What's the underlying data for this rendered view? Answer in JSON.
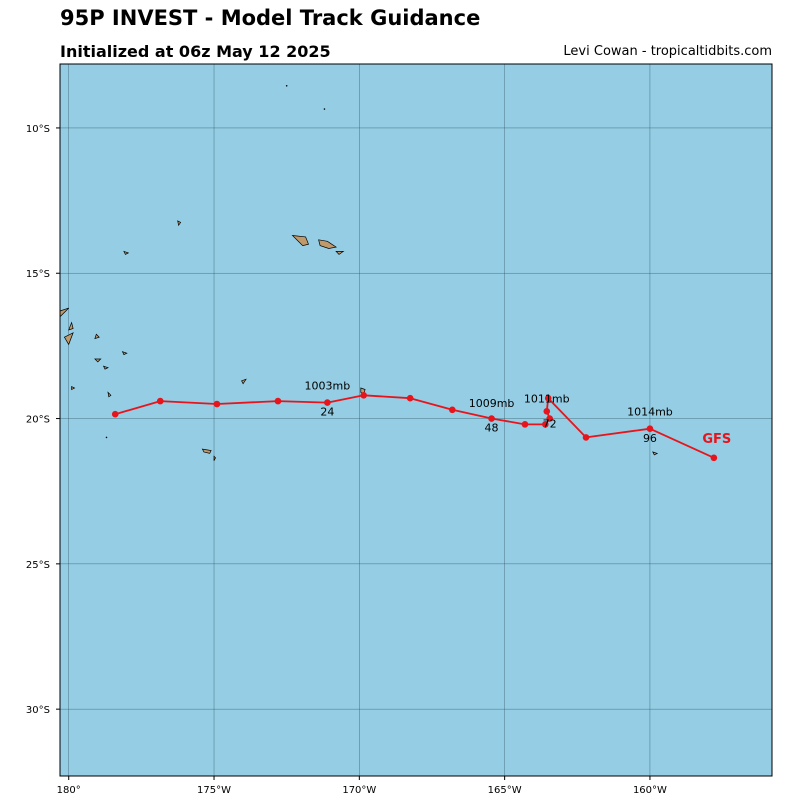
{
  "title": "95P INVEST - Model Track Guidance",
  "subtitle": "Initialized at 06z May 12 2025",
  "credit": "Levi Cowan - tropicaltidbits.com",
  "colors": {
    "ocean": "#94cde4",
    "land": "#c09a6b",
    "track": "#e8141b",
    "grid": "#2b4a5a"
  },
  "chart_data": {
    "type": "map-track",
    "lon_range": [
      -180.3,
      -155.8
    ],
    "lat_range": [
      -32.3,
      -7.8
    ],
    "lon_ticks": [
      {
        "value": -180,
        "label": "180°"
      },
      {
        "value": -175,
        "label": "175°W"
      },
      {
        "value": -170,
        "label": "170°W"
      },
      {
        "value": -165,
        "label": "165°W"
      },
      {
        "value": -160,
        "label": "160°W"
      }
    ],
    "lat_ticks": [
      {
        "value": -10,
        "label": "10°S"
      },
      {
        "value": -15,
        "label": "15°S"
      },
      {
        "value": -20,
        "label": "20°S"
      },
      {
        "value": -25,
        "label": "25°S"
      },
      {
        "value": -30,
        "label": "30°S"
      }
    ],
    "grid": true,
    "model": "GFS",
    "track": [
      {
        "lon": -178.4,
        "lat": -19.85
      },
      {
        "lon": -176.85,
        "lat": -19.4
      },
      {
        "lon": -174.9,
        "lat": -19.5
      },
      {
        "lon": -172.8,
        "lat": -19.4
      },
      {
        "lon": -171.1,
        "lat": -19.45
      },
      {
        "lon": -169.85,
        "lat": -19.2
      },
      {
        "lon": -168.25,
        "lat": -19.3
      },
      {
        "lon": -166.8,
        "lat": -19.7
      },
      {
        "lon": -165.45,
        "lat": -20.0
      },
      {
        "lon": -164.3,
        "lat": -20.2
      },
      {
        "lon": -163.6,
        "lat": -20.2
      },
      {
        "lon": -163.45,
        "lat": -20.0
      },
      {
        "lon": -163.55,
        "lat": -19.75
      },
      {
        "lon": -163.5,
        "lat": -19.3
      },
      {
        "lon": -162.2,
        "lat": -20.65
      },
      {
        "lon": -160.0,
        "lat": -20.35
      },
      {
        "lon": -157.8,
        "lat": -21.35
      }
    ],
    "annotations": [
      {
        "lon": -171.1,
        "lat": -19.0,
        "text": "1003mb"
      },
      {
        "lon": -171.1,
        "lat": -19.9,
        "text": "24"
      },
      {
        "lon": -165.45,
        "lat": -19.6,
        "text": "1009mb"
      },
      {
        "lon": -165.45,
        "lat": -20.45,
        "text": "48"
      },
      {
        "lon": -163.55,
        "lat": -19.45,
        "text": "1011mb"
      },
      {
        "lon": -163.45,
        "lat": -20.3,
        "text": "72"
      },
      {
        "lon": -160.0,
        "lat": -19.9,
        "text": "1014mb"
      },
      {
        "lon": -160.0,
        "lat": -20.8,
        "text": "96"
      }
    ],
    "model_label": {
      "lon": -157.7,
      "lat": -20.85,
      "text": "GFS"
    },
    "islands": [
      {
        "name": "Upolu",
        "points": [
          [
            -172.3,
            -13.7
          ],
          [
            -171.85,
            -13.75
          ],
          [
            -171.75,
            -14.0
          ],
          [
            -171.95,
            -14.05
          ],
          [
            -172.05,
            -13.95
          ]
        ]
      },
      {
        "name": "Savaii",
        "points": [
          [
            -171.4,
            -13.85
          ],
          [
            -171.1,
            -13.9
          ],
          [
            -170.8,
            -14.1
          ],
          [
            -171.05,
            -14.15
          ],
          [
            -171.35,
            -14.05
          ]
        ]
      },
      {
        "name": "Tutuila",
        "points": [
          [
            -170.8,
            -14.25
          ],
          [
            -170.55,
            -14.25
          ],
          [
            -170.7,
            -14.35
          ]
        ]
      },
      {
        "name": "Wallis",
        "points": [
          [
            -176.25,
            -13.2
          ],
          [
            -176.15,
            -13.25
          ],
          [
            -176.22,
            -13.35
          ]
        ]
      },
      {
        "name": "Futuna",
        "points": [
          [
            -178.1,
            -14.25
          ],
          [
            -177.95,
            -14.3
          ],
          [
            -178.05,
            -14.35
          ]
        ]
      },
      {
        "name": "Vanua Levu",
        "points": [
          [
            -180.3,
            -16.3
          ],
          [
            -180.0,
            -16.2
          ],
          [
            -180.3,
            -16.5
          ]
        ]
      },
      {
        "name": "Taveuni",
        "points": [
          [
            -179.9,
            -16.7
          ],
          [
            -179.85,
            -16.9
          ],
          [
            -180.0,
            -16.95
          ]
        ]
      },
      {
        "name": "Lau A",
        "points": [
          [
            -180.15,
            -17.2
          ],
          [
            -179.85,
            -17.05
          ],
          [
            -180.0,
            -17.45
          ]
        ]
      },
      {
        "name": "Lau B",
        "points": [
          [
            -179.05,
            -17.1
          ],
          [
            -178.95,
            -17.2
          ],
          [
            -179.1,
            -17.25
          ]
        ]
      },
      {
        "name": "Lau C",
        "points": [
          [
            -178.15,
            -17.7
          ],
          [
            -178.0,
            -17.75
          ],
          [
            -178.1,
            -17.8
          ]
        ]
      },
      {
        "name": "Lau D",
        "points": [
          [
            -179.1,
            -17.95
          ],
          [
            -178.9,
            -17.95
          ],
          [
            -179.0,
            -18.05
          ]
        ]
      },
      {
        "name": "Lau E",
        "points": [
          [
            -178.8,
            -18.2
          ],
          [
            -178.65,
            -18.25
          ],
          [
            -178.75,
            -18.3
          ]
        ]
      },
      {
        "name": "Lau F",
        "points": [
          [
            -179.9,
            -18.9
          ],
          [
            -179.8,
            -18.95
          ],
          [
            -179.9,
            -19.0
          ]
        ]
      },
      {
        "name": "Lau G",
        "points": [
          [
            -178.65,
            -19.1
          ],
          [
            -178.55,
            -19.2
          ],
          [
            -178.62,
            -19.25
          ]
        ]
      },
      {
        "name": "Niuafo'ou",
        "points": [
          [
            -174.05,
            -18.7
          ],
          [
            -173.9,
            -18.65
          ],
          [
            -174.0,
            -18.8
          ]
        ]
      },
      {
        "name": "Tongatapu",
        "points": [
          [
            -175.4,
            -21.05
          ],
          [
            -175.1,
            -21.1
          ],
          [
            -175.15,
            -21.2
          ],
          [
            -175.35,
            -21.15
          ]
        ]
      },
      {
        "name": "Eua",
        "points": [
          [
            -175.0,
            -21.3
          ],
          [
            -174.95,
            -21.35
          ],
          [
            -175.0,
            -21.45
          ]
        ]
      },
      {
        "name": "Niue",
        "points": [
          [
            -169.95,
            -18.95
          ],
          [
            -169.8,
            -19.0
          ],
          [
            -169.85,
            -19.15
          ],
          [
            -169.95,
            -19.1
          ]
        ]
      },
      {
        "name": "Palmerston",
        "points": [
          [
            -159.9,
            -21.15
          ],
          [
            -159.75,
            -21.2
          ],
          [
            -159.85,
            -21.25
          ]
        ]
      }
    ],
    "dots": [
      {
        "lon": -172.5,
        "lat": -8.55
      },
      {
        "lon": -171.2,
        "lat": -9.35
      },
      {
        "lon": -178.7,
        "lat": -20.65
      }
    ]
  }
}
